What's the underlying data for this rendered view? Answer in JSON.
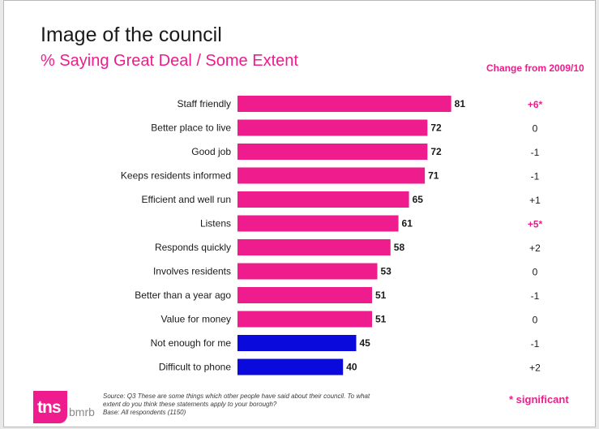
{
  "header": {
    "title": "Image of the council",
    "subtitle": "% Saying Great Deal / Some Extent",
    "change_header": "Change from 2009/10"
  },
  "chart_data": {
    "type": "bar",
    "orientation": "horizontal",
    "title": "Image of the council",
    "subtitle": "% Saying Great Deal / Some Extent",
    "categories": [
      "Staff friendly",
      "Better place to live",
      "Good job",
      "Keeps residents informed",
      "Efficient and well run",
      "Listens",
      "Responds quickly",
      "Involves residents",
      "Better than a year ago",
      "Value for money",
      "Not enough for me",
      "Difficult to phone"
    ],
    "values": [
      81,
      72,
      72,
      71,
      65,
      61,
      58,
      53,
      51,
      51,
      45,
      40
    ],
    "bar_colors": [
      "#ee1c8c",
      "#ee1c8c",
      "#ee1c8c",
      "#ee1c8c",
      "#ee1c8c",
      "#ee1c8c",
      "#ee1c8c",
      "#ee1c8c",
      "#ee1c8c",
      "#ee1c8c",
      "#0a0adc",
      "#0a0adc"
    ],
    "change_label": "Change from 2009/10",
    "changes": [
      "+6*",
      "0",
      "-1",
      "-1",
      "+1",
      "+5*",
      "+2",
      "0",
      "-1",
      "0",
      "-1",
      "+2"
    ],
    "significant": [
      true,
      false,
      false,
      false,
      false,
      true,
      false,
      false,
      false,
      false,
      false,
      false
    ],
    "xlim": [
      0,
      100
    ],
    "grid": false,
    "legend": "none"
  },
  "colors": {
    "accent": "#ee1c8c",
    "negative": "#0a0adc",
    "text": "#1a1a1a"
  },
  "footer": {
    "note": "* significant",
    "source_line1": "Source: Q3 These are some things which other people have said about their council. To what",
    "source_line2": "extent do you think these statements apply to your borough?",
    "base": "Base: All respondents (1150)"
  },
  "logo": {
    "mark": "tns",
    "suffix": "bmrb"
  }
}
